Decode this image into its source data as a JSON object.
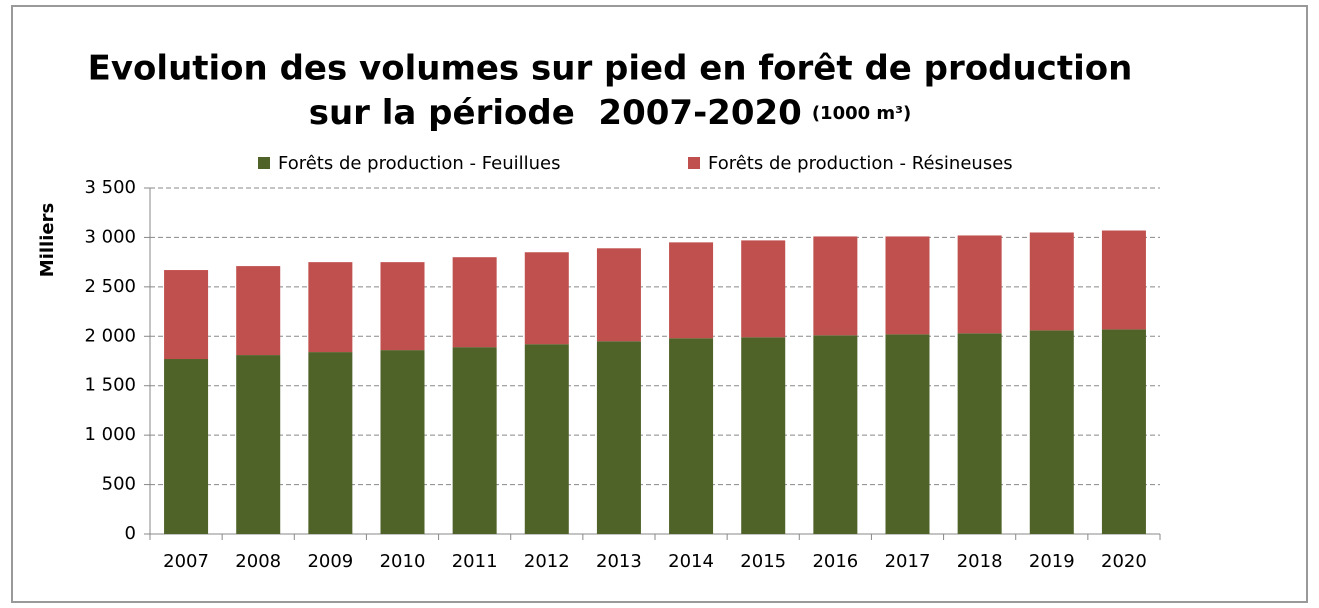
{
  "chart_data": {
    "type": "stacked_bar",
    "title": [
      "Evolution des volumes sur pied en forêt de production",
      "sur la période  2007-2020"
    ],
    "title_unit": "(1000 m³)",
    "ylabel": "Milliers",
    "categories": [
      "2007",
      "2008",
      "2009",
      "2010",
      "2011",
      "2012",
      "2013",
      "2014",
      "2015",
      "2016",
      "2017",
      "2018",
      "2019",
      "2020"
    ],
    "series": [
      {
        "name": "Forêts de production - Feuillues",
        "color": "#4f6228",
        "values": [
          1770,
          1810,
          1840,
          1860,
          1890,
          1920,
          1950,
          1980,
          1990,
          2010,
          2020,
          2030,
          2060,
          2070
        ]
      },
      {
        "name": "Forêts de production - Résineuses",
        "color": "#c0504d",
        "values": [
          900,
          900,
          910,
          890,
          910,
          930,
          940,
          970,
          980,
          1000,
          990,
          990,
          990,
          1000
        ]
      }
    ],
    "ylim": [
      0,
      3500
    ],
    "yticks": [
      0,
      500,
      {
        "value": 1000,
        "label": "1 000"
      },
      {
        "value": 1500,
        "label": "1 500"
      },
      {
        "value": 2000,
        "label": "2 000"
      },
      {
        "value": 2500,
        "label": "2 500"
      },
      {
        "value": 3000,
        "label": "3 000"
      },
      {
        "value": 3500,
        "label": "3 500"
      }
    ],
    "grid": true,
    "legend": "top"
  }
}
